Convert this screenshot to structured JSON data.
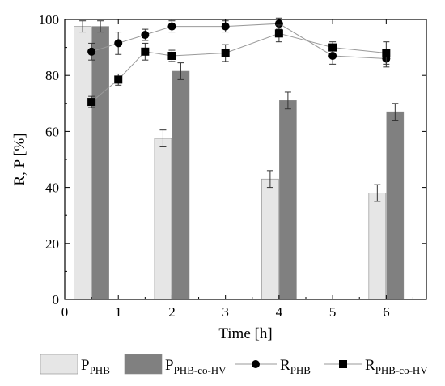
{
  "chart_data": {
    "type": "bar",
    "title": "",
    "xlabel": "Time [h]",
    "ylabel": "R, P [%]",
    "xlim": [
      0,
      6.75
    ],
    "ylim": [
      0,
      100
    ],
    "xticks": [
      "0",
      "1",
      "2",
      "3",
      "4",
      "5",
      "6"
    ],
    "yticks": [
      "0",
      "20",
      "40",
      "60",
      "80",
      "100"
    ],
    "grid": false,
    "legend_position": "bottom",
    "bar_series": [
      {
        "key": "P_PHB",
        "label_main": "P",
        "label_sub": "PHB",
        "color": "#e6e6e6",
        "x": [
          0.5,
          2,
          4,
          6
        ],
        "values": [
          97.5,
          57.5,
          43,
          38
        ],
        "errors": [
          2,
          3,
          3,
          3
        ]
      },
      {
        "key": "P_PHB-co-HV",
        "label_main": "P",
        "label_sub": "PHB-co-HV",
        "color": "#808080",
        "x": [
          0.5,
          2,
          4,
          6
        ],
        "values": [
          97.5,
          81.5,
          71,
          67
        ],
        "errors": [
          2,
          3,
          3,
          3
        ]
      }
    ],
    "line_series": [
      {
        "key": "R_PHB",
        "label_main": "R",
        "label_sub": "PHB",
        "marker": "circle",
        "color": "#000000",
        "x": [
          0.5,
          1,
          1.5,
          2,
          3,
          4,
          5,
          6
        ],
        "values": [
          88.5,
          91.5,
          94.5,
          97.5,
          97.5,
          98.5,
          87,
          86
        ],
        "errors": [
          3,
          4,
          2,
          2,
          2,
          2,
          3,
          3
        ]
      },
      {
        "key": "R_PHB-co-HV",
        "label_main": "R",
        "label_sub": "PHB-co-HV",
        "marker": "square",
        "color": "#000000",
        "x": [
          0.5,
          1,
          1.5,
          2,
          3,
          4,
          5,
          6
        ],
        "values": [
          70.5,
          78.5,
          88.5,
          87,
          88,
          95,
          90,
          88
        ],
        "errors": [
          2,
          2,
          3,
          2,
          3,
          3,
          2,
          4
        ]
      }
    ]
  }
}
